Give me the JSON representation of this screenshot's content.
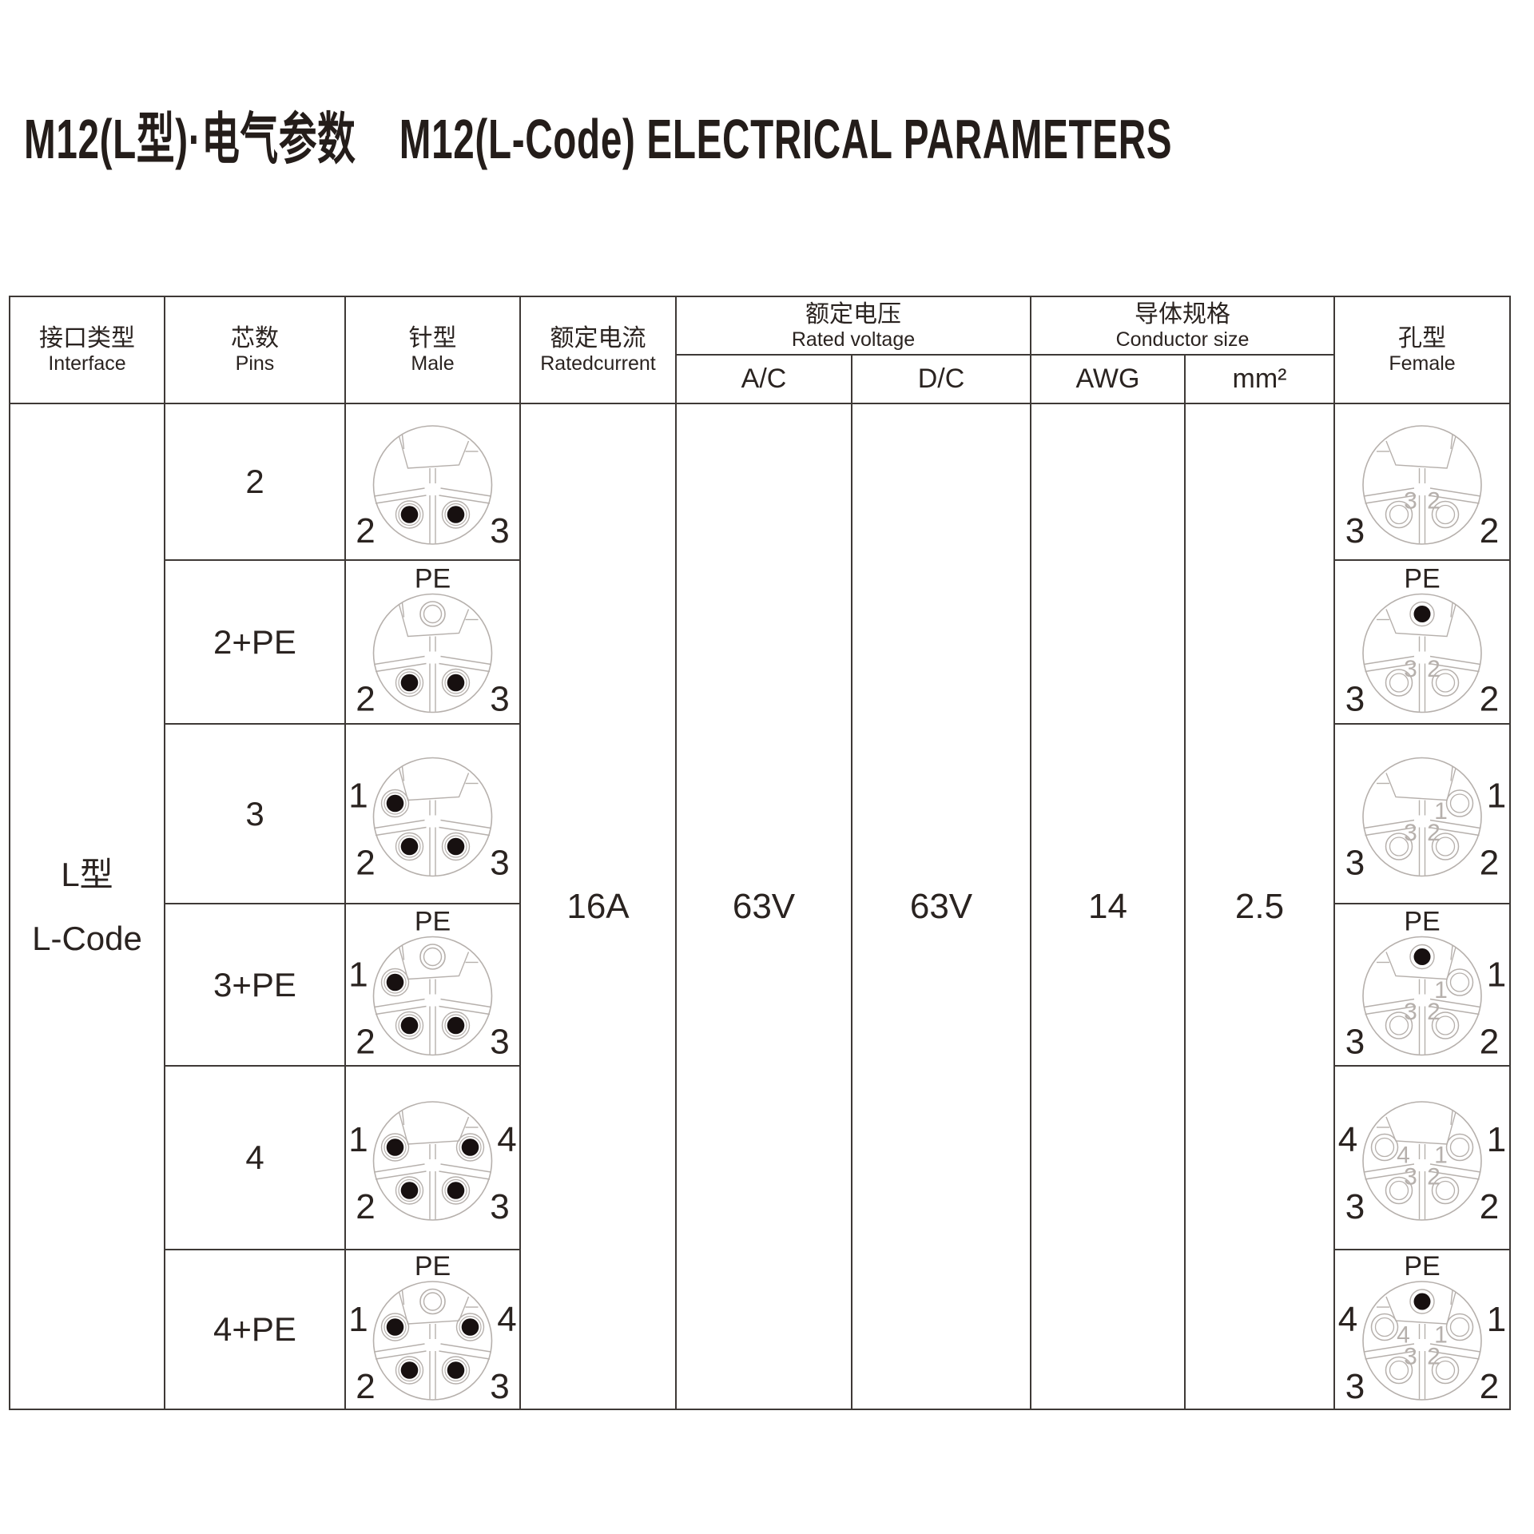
{
  "title": {
    "cn": "M12(L型)·电气参数",
    "en": "M12(L-Code) ELECTRICAL PARAMETERS"
  },
  "colors": {
    "ink": "#2a2320",
    "art": "#b6b0ac",
    "pin": "#171010",
    "border": "#3e3936"
  },
  "table": {
    "headers": {
      "interface": {
        "cn": "接口类型",
        "en": "Interface"
      },
      "pins": {
        "cn": "芯数",
        "en": "Pins"
      },
      "male": {
        "cn": "针型",
        "en": "Male"
      },
      "rated_current": {
        "cn": "额定电流",
        "en": "Ratedcurrent"
      },
      "rated_voltage": {
        "cn": "额定电压",
        "en": "Rated voltage",
        "sub_ac": "A/C",
        "sub_dc": "D/C"
      },
      "conductor_size": {
        "cn": "导体规格",
        "en": "Conductor size",
        "sub_awg": "AWG",
        "sub_mm2": "mm²"
      },
      "female": {
        "cn": "孔型",
        "en": "Female"
      }
    },
    "interface_value": {
      "cn": "L型",
      "en": "L-Code"
    },
    "values": {
      "rated_current": "16A",
      "voltage_ac": "63V",
      "voltage_dc": "63V",
      "awg": "14",
      "mm2": "2.5"
    },
    "pe_label": "PE",
    "rows": [
      {
        "pins_label": "2",
        "pe": false,
        "contacts": [
          {
            "id": "2",
            "pos": "bl"
          },
          {
            "id": "3",
            "pos": "br"
          }
        ]
      },
      {
        "pins_label": "2+PE",
        "pe": true,
        "contacts": [
          {
            "id": "2",
            "pos": "bl"
          },
          {
            "id": "3",
            "pos": "br"
          }
        ]
      },
      {
        "pins_label": "3",
        "pe": false,
        "contacts": [
          {
            "id": "1",
            "pos": "ul"
          },
          {
            "id": "2",
            "pos": "bl"
          },
          {
            "id": "3",
            "pos": "br"
          }
        ]
      },
      {
        "pins_label": "3+PE",
        "pe": true,
        "contacts": [
          {
            "id": "1",
            "pos": "ul"
          },
          {
            "id": "2",
            "pos": "bl"
          },
          {
            "id": "3",
            "pos": "br"
          }
        ]
      },
      {
        "pins_label": "4",
        "pe": false,
        "contacts": [
          {
            "id": "1",
            "pos": "ul"
          },
          {
            "id": "4",
            "pos": "ur"
          },
          {
            "id": "2",
            "pos": "bl"
          },
          {
            "id": "3",
            "pos": "br"
          }
        ]
      },
      {
        "pins_label": "4+PE",
        "pe": true,
        "contacts": [
          {
            "id": "1",
            "pos": "ul"
          },
          {
            "id": "4",
            "pos": "ur"
          },
          {
            "id": "2",
            "pos": "bl"
          },
          {
            "id": "3",
            "pos": "br"
          }
        ]
      }
    ]
  }
}
